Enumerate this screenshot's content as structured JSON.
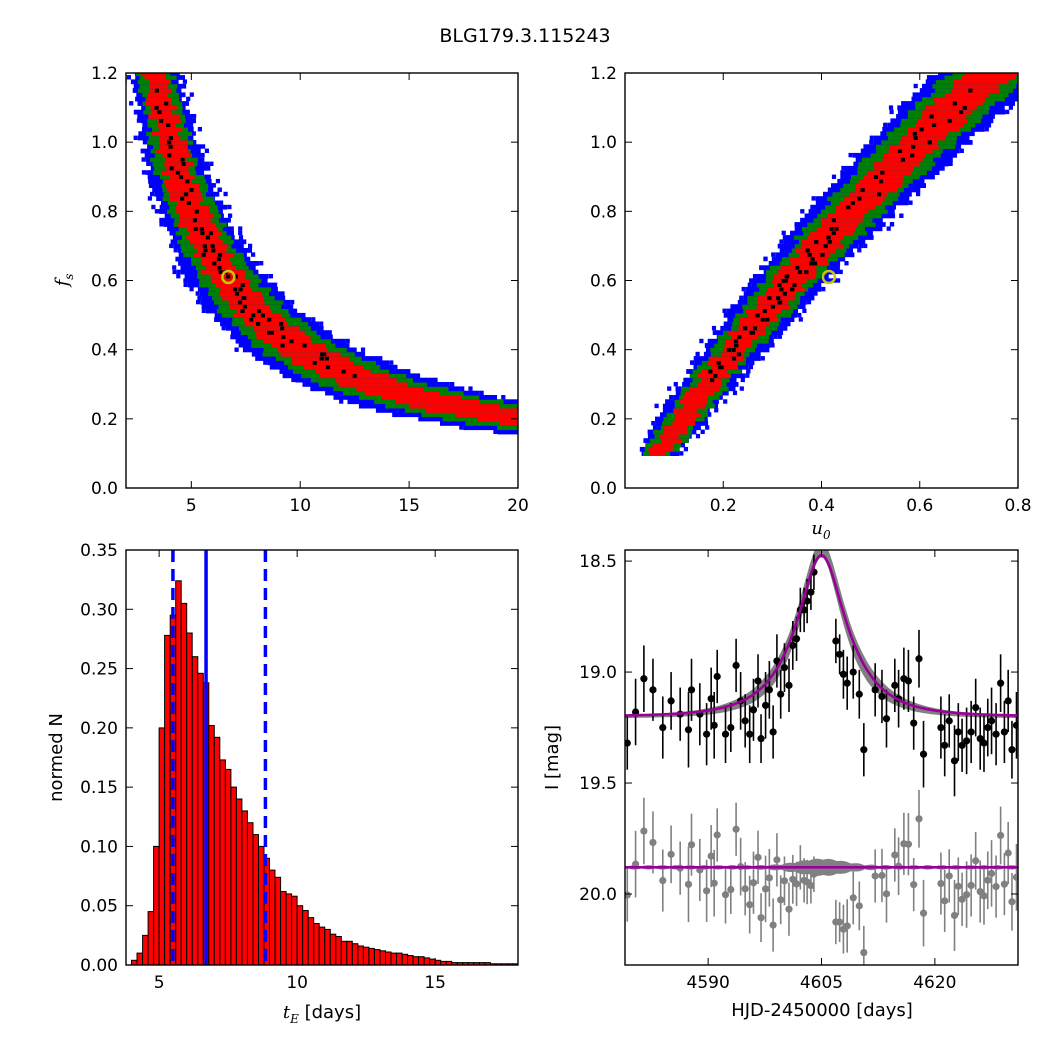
{
  "figure_title": "BLG179.3.115243",
  "colors": {
    "contour_inner": "#ff0000",
    "contour_mid": "#008000",
    "contour_outer": "#0000ff",
    "best_points": "#000000",
    "marker": "#c8c800",
    "hist_fill": "#ff0000",
    "hist_edge": "#000000",
    "median_line": "#0000ff",
    "model": "#990099",
    "model_band": "#808080",
    "data": "#000000",
    "residual": "#808080"
  },
  "chart_data": [
    {
      "type": "heatmap",
      "panel": "tE-fs",
      "title": "",
      "xlabel": "",
      "ylabel": "f_s",
      "xlim": [
        2,
        20
      ],
      "ylim": [
        0,
        1.2
      ],
      "xticks": [
        "5",
        "10",
        "15",
        "20"
      ],
      "yticks": [
        "0.0",
        "0.2",
        "0.4",
        "0.6",
        "0.8",
        "1.0",
        "1.2"
      ],
      "relation": "fs * tE = 4.05",
      "best_fit": {
        "x": 6.7,
        "y": 0.61
      },
      "fs_range": [
        0.1,
        1.2
      ]
    },
    {
      "type": "heatmap",
      "panel": "u0-fs",
      "title": "",
      "xlabel": "u_0",
      "ylabel": "",
      "xlim": [
        0,
        0.8
      ],
      "ylim": [
        0,
        1.2
      ],
      "xticks": [
        "0.2",
        "0.4",
        "0.6",
        "0.8"
      ],
      "yticks": [
        "0.0",
        "0.2",
        "0.4",
        "0.6",
        "0.8",
        "1.0",
        "1.2"
      ],
      "relation": "u0 = 0.07 + 0.47*(fs-0.1) + 0.13*(fs-0.1)^2",
      "best_fit": {
        "x": 0.415,
        "y": 0.61
      },
      "fs_range": [
        0.1,
        1.2
      ]
    },
    {
      "type": "bar",
      "panel": "tE-histogram",
      "title": "",
      "xlabel": "t_E [days]",
      "ylabel": "normed N",
      "xlim": [
        3.8,
        18
      ],
      "ylim": [
        0,
        0.35
      ],
      "xticks": [
        "5",
        "10",
        "15"
      ],
      "yticks": [
        "0.00",
        "0.05",
        "0.10",
        "0.15",
        "0.20",
        "0.25",
        "0.30",
        "0.35"
      ],
      "bin_start": 4.0,
      "bin_width": 0.2,
      "values": [
        0.004,
        0.01,
        0.025,
        0.045,
        0.1,
        0.2,
        0.278,
        0.295,
        0.324,
        0.305,
        0.28,
        0.26,
        0.246,
        0.238,
        0.202,
        0.192,
        0.173,
        0.165,
        0.15,
        0.14,
        0.13,
        0.12,
        0.11,
        0.1,
        0.09,
        0.08,
        0.074,
        0.062,
        0.06,
        0.058,
        0.05,
        0.046,
        0.04,
        0.035,
        0.032,
        0.03,
        0.026,
        0.024,
        0.02,
        0.02,
        0.018,
        0.016,
        0.015,
        0.014,
        0.013,
        0.012,
        0.011,
        0.01,
        0.01,
        0.009,
        0.008,
        0.007,
        0.007,
        0.006,
        0.005,
        0.004,
        0.003,
        0.003,
        0.002,
        0.002,
        0.002,
        0.002,
        0.002,
        0.002,
        0.002,
        0.001,
        0.001,
        0.001,
        0.001,
        0.001
      ],
      "median": 6.7,
      "interval": [
        5.5,
        8.85
      ]
    },
    {
      "type": "line",
      "panel": "lightcurve",
      "title": "",
      "xlabel": "HJD-2450000 [days]",
      "ylabel": "I [mag]",
      "xlim": [
        4579,
        4631
      ],
      "ylim": [
        20.32,
        18.45
      ],
      "xticks": [
        "4590",
        "4605",
        "4620"
      ],
      "yticks": [
        "18.5",
        "19.0",
        "19.5",
        "20.0"
      ],
      "model": {
        "t0": 4605,
        "u0": 0.415,
        "tE": 6.7,
        "fs": 0.61,
        "baseline": 19.2
      },
      "residual_offset": 19.88,
      "points": [
        [
          4579.3,
          19.32,
          0.12
        ],
        [
          4580.4,
          19.18,
          0.15
        ],
        [
          4581.5,
          19.03,
          0.15
        ],
        [
          4582.7,
          19.08,
          0.14
        ],
        [
          4584.0,
          19.25,
          0.14
        ],
        [
          4585.1,
          19.13,
          0.13
        ],
        [
          4586.3,
          19.19,
          0.12
        ],
        [
          4587.4,
          19.26,
          0.17
        ],
        [
          4587.8,
          19.08,
          0.14
        ],
        [
          4588.9,
          19.19,
          0.14
        ],
        [
          4589.8,
          19.28,
          0.14
        ],
        [
          4590.4,
          19.12,
          0.14
        ],
        [
          4590.8,
          19.24,
          0.15
        ],
        [
          4591.2,
          19.02,
          0.12
        ],
        [
          4592.3,
          19.28,
          0.13
        ],
        [
          4593.0,
          19.25,
          0.11
        ],
        [
          4593.7,
          18.97,
          0.12
        ],
        [
          4594.3,
          19.13,
          0.13
        ],
        [
          4594.9,
          19.22,
          0.12
        ],
        [
          4595.5,
          19.28,
          0.13
        ],
        [
          4596.0,
          19.17,
          0.14
        ],
        [
          4596.6,
          19.04,
          0.12
        ],
        [
          4597.0,
          19.3,
          0.11
        ],
        [
          4597.6,
          19.15,
          0.15
        ],
        [
          4598.1,
          19.08,
          0.13
        ],
        [
          4598.6,
          19.27,
          0.12
        ],
        [
          4599.1,
          18.95,
          0.12
        ],
        [
          4599.6,
          19.1,
          0.11
        ],
        [
          4600.1,
          18.98,
          0.11
        ],
        [
          4600.7,
          19.06,
          0.12
        ],
        [
          4601.2,
          18.88,
          0.11
        ],
        [
          4601.7,
          18.85,
          0.1
        ],
        [
          4602.2,
          18.72,
          0.1
        ],
        [
          4602.7,
          18.72,
          0.1
        ],
        [
          4603.1,
          18.68,
          0.1
        ],
        [
          4603.6,
          18.64,
          0.08
        ],
        [
          4604.0,
          18.55,
          0.08
        ],
        [
          4606.9,
          18.86,
          0.1
        ],
        [
          4607.4,
          18.92,
          0.09
        ],
        [
          4607.9,
          19.01,
          0.11
        ],
        [
          4608.4,
          19.05,
          0.12
        ],
        [
          4609.2,
          19.0,
          0.12
        ],
        [
          4610.0,
          19.1,
          0.11
        ],
        [
          4610.6,
          19.35,
          0.12
        ],
        [
          4612.1,
          19.08,
          0.12
        ],
        [
          4613.0,
          19.11,
          0.12
        ],
        [
          4613.6,
          19.21,
          0.13
        ],
        [
          4614.7,
          19.06,
          0.12
        ],
        [
          4615.2,
          19.12,
          0.13
        ],
        [
          4615.9,
          19.03,
          0.14
        ],
        [
          4616.5,
          19.04,
          0.14
        ],
        [
          4617.2,
          19.23,
          0.12
        ],
        [
          4617.9,
          18.94,
          0.13
        ],
        [
          4618.5,
          19.37,
          0.15
        ],
        [
          4620.8,
          19.25,
          0.14
        ],
        [
          4621.3,
          19.33,
          0.14
        ],
        [
          4621.9,
          19.22,
          0.12
        ],
        [
          4622.6,
          19.4,
          0.16
        ],
        [
          4623.1,
          19.27,
          0.13
        ],
        [
          4623.6,
          19.33,
          0.12
        ],
        [
          4624.2,
          19.31,
          0.15
        ],
        [
          4624.8,
          19.27,
          0.14
        ],
        [
          4625.4,
          19.16,
          0.13
        ],
        [
          4626.0,
          19.3,
          0.14
        ],
        [
          4626.5,
          19.32,
          0.13
        ],
        [
          4627.0,
          19.25,
          0.13
        ],
        [
          4627.5,
          19.22,
          0.15
        ],
        [
          4628.1,
          19.28,
          0.14
        ],
        [
          4628.7,
          19.05,
          0.13
        ],
        [
          4629.2,
          19.27,
          0.14
        ],
        [
          4629.7,
          19.13,
          0.14
        ],
        [
          4630.2,
          19.35,
          0.13
        ],
        [
          4630.8,
          19.24,
          0.15
        ]
      ]
    }
  ]
}
